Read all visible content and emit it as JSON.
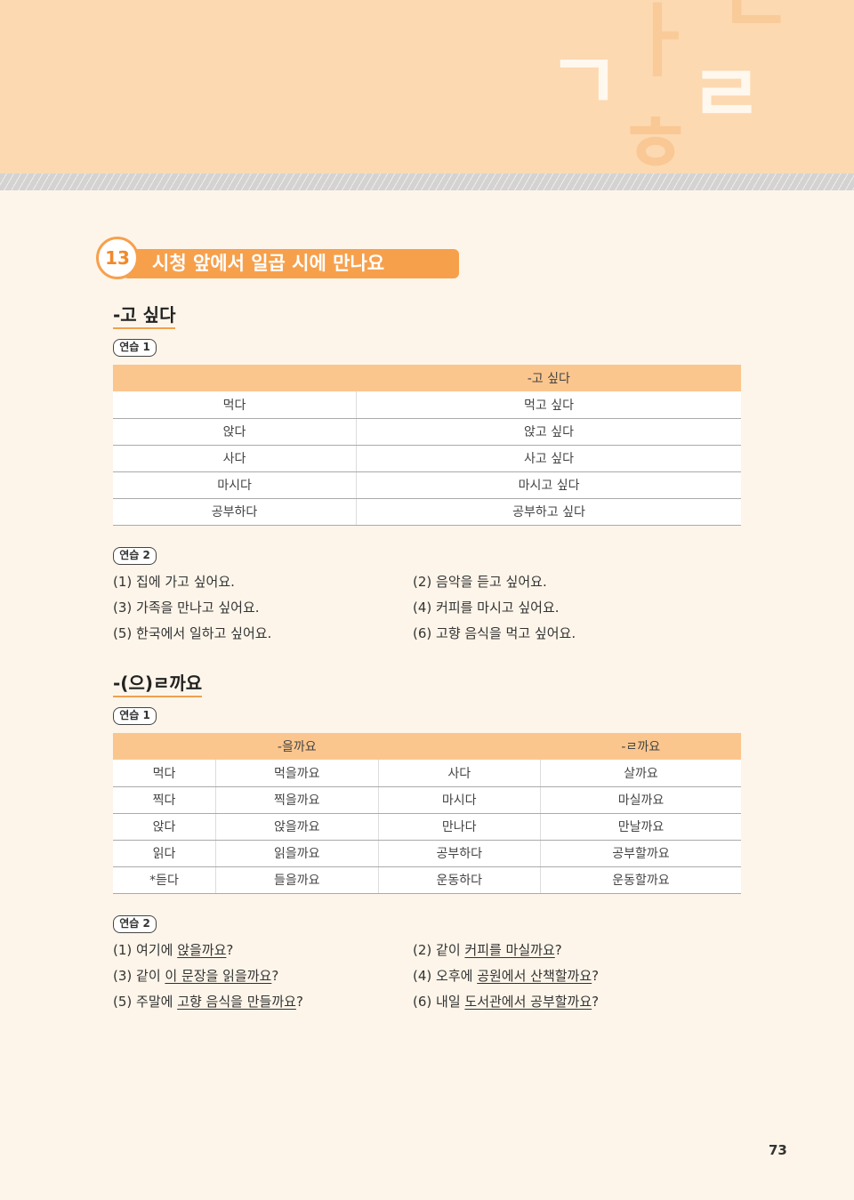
{
  "lesson": {
    "number": "13",
    "title": "시청 앞에서 일곱 시에 만나요"
  },
  "decor_letters": [
    "ㄱ",
    "ㅏ",
    "ㄴ",
    "ㄹ",
    "ㅎ"
  ],
  "section1": {
    "heading": "-고 싶다",
    "practice1_label": "연습 1",
    "table": {
      "headers": [
        "",
        "-고 싶다"
      ],
      "rows": [
        [
          "먹다",
          "먹고 싶다"
        ],
        [
          "앉다",
          "앉고 싶다"
        ],
        [
          "사다",
          "사고 싶다"
        ],
        [
          "마시다",
          "마시고 싶다"
        ],
        [
          "공부하다",
          "공부하고 싶다"
        ]
      ]
    },
    "practice2_label": "연습 2",
    "answers": [
      "(1) 집에 가고 싶어요.",
      "(2) 음악을 듣고 싶어요.",
      "(3) 가족을 만나고 싶어요.",
      "(4) 커피를 마시고 싶어요.",
      "(5) 한국에서 일하고 싶어요.",
      "(6) 고향 음식을 먹고 싶어요."
    ]
  },
  "section2": {
    "heading": "-(으)ㄹ까요",
    "practice1_label": "연습 1",
    "table": {
      "headers": [
        "",
        "-을까요",
        "",
        "-ㄹ까요"
      ],
      "rows": [
        [
          "먹다",
          "먹을까요",
          "사다",
          "살까요"
        ],
        [
          "찍다",
          "찍을까요",
          "마시다",
          "마실까요"
        ],
        [
          "앉다",
          "앉을까요",
          "만나다",
          "만날까요"
        ],
        [
          "읽다",
          "읽을까요",
          "공부하다",
          "공부할까요"
        ],
        [
          "*듣다",
          "들을까요",
          "운동하다",
          "운동할까요"
        ]
      ]
    },
    "practice2_label": "연습 2",
    "answers": [
      {
        "prefix": "(1) 여기에 ",
        "underlined": "앉을까요",
        "suffix": "?"
      },
      {
        "prefix": "(2) 같이 ",
        "underlined": "커피를 마실까요",
        "suffix": "?"
      },
      {
        "prefix": "(3) 같이 ",
        "underlined": "이 문장을 읽을까요",
        "suffix": "?"
      },
      {
        "prefix": "(4) 오후에 ",
        "underlined": "공원에서 산책할까요",
        "suffix": "?"
      },
      {
        "prefix": "(5) 주말에 ",
        "underlined": "고향 음식을 만들까요",
        "suffix": "?"
      },
      {
        "prefix": "(6) 내일 ",
        "underlined": "도서관에서 공부할까요",
        "suffix": "?"
      }
    ]
  },
  "page_number": "73"
}
